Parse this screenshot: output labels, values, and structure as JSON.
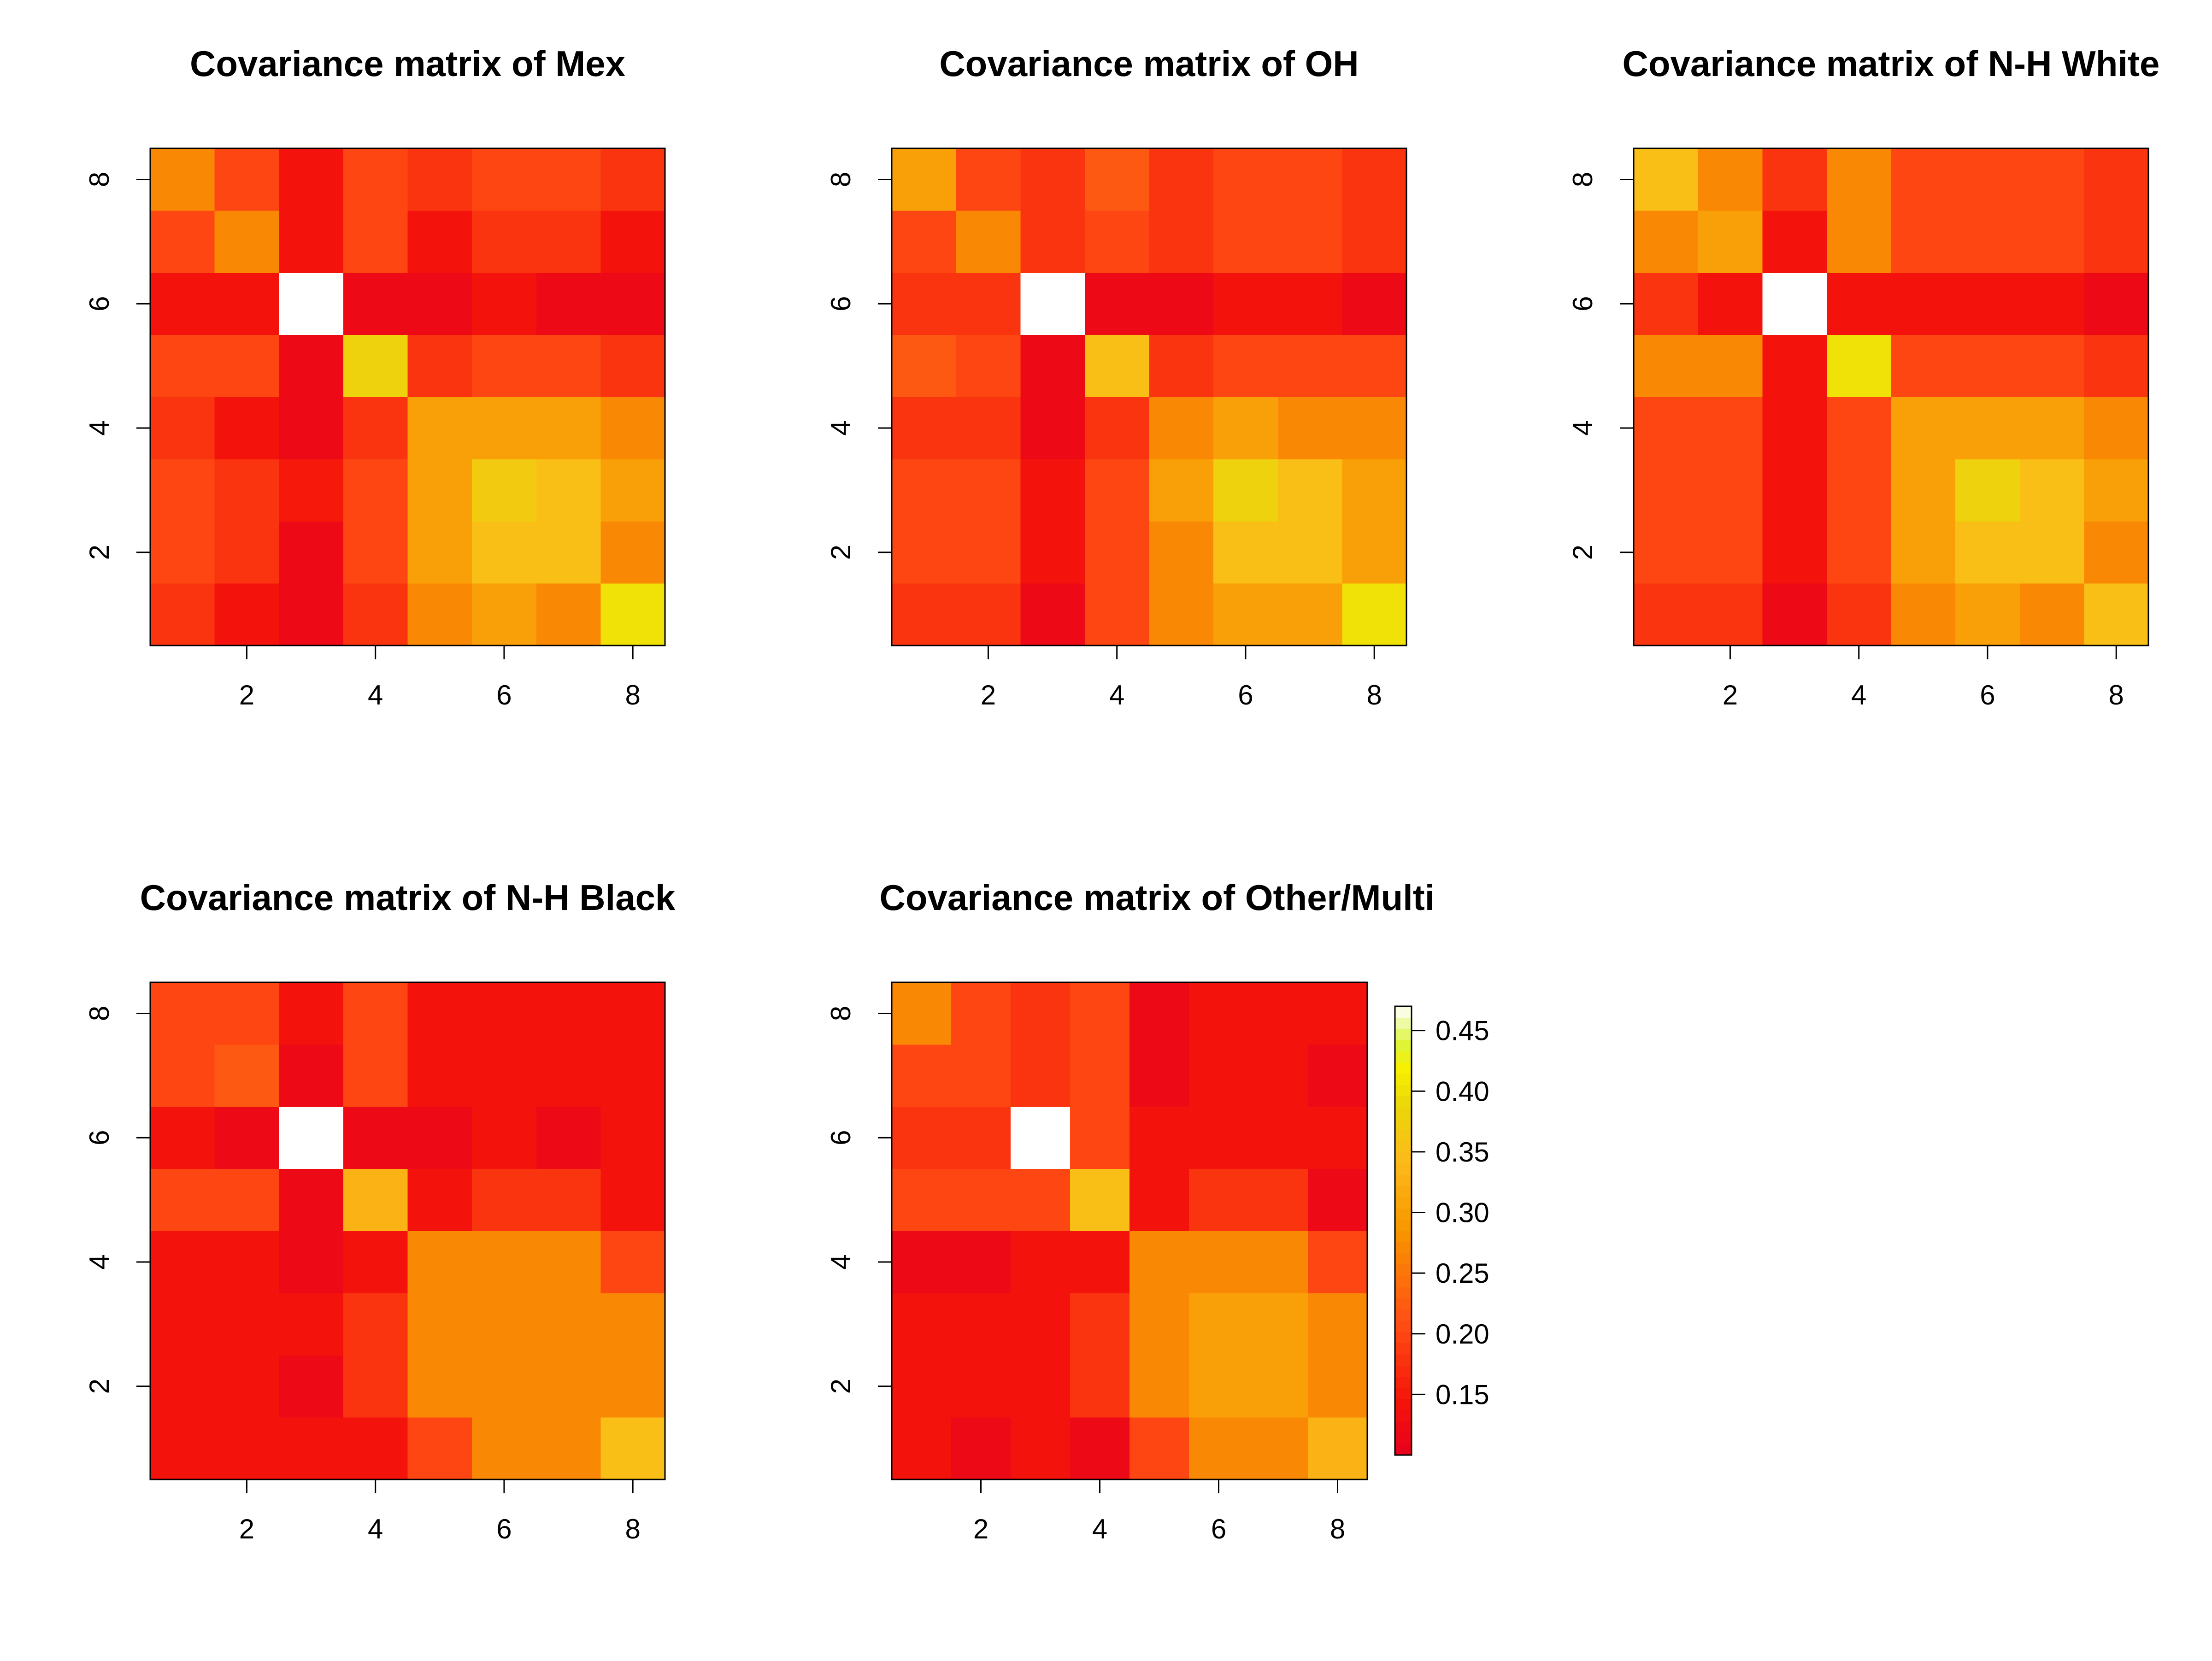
{
  "figure": {
    "colorbar": {
      "colormap": "heat",
      "ticks": [
        0.45,
        0.4,
        0.35,
        0.3,
        0.25,
        0.2,
        0.15
      ],
      "tick_labels": [
        "0.45",
        "0.40",
        "0.35",
        "0.30",
        "0.25",
        "0.20",
        "0.15"
      ],
      "range": [
        0.1,
        0.47
      ]
    },
    "axis_tick_labels": [
      "2",
      "4",
      "6",
      "8"
    ]
  },
  "chart_data": [
    {
      "type": "heatmap",
      "title": "Covariance matrix of Mex",
      "xlim": [
        0.5,
        8.5
      ],
      "ylim": [
        0.5,
        8.5
      ],
      "xticks": [
        2,
        4,
        6,
        8
      ],
      "yticks": [
        2,
        4,
        6,
        8
      ],
      "z_range": [
        0.1,
        0.47
      ],
      "rows": [
        [
          0.18,
          0.14,
          0.12,
          0.18,
          0.27,
          0.3,
          0.27,
          0.4
        ],
        [
          0.2,
          0.18,
          0.12,
          0.2,
          0.3,
          0.35,
          0.35,
          0.27
        ],
        [
          0.2,
          0.18,
          0.15,
          0.2,
          0.3,
          0.37,
          0.35,
          0.3
        ],
        [
          0.18,
          0.14,
          0.12,
          0.18,
          0.3,
          0.3,
          0.3,
          0.27
        ],
        [
          0.2,
          0.2,
          0.12,
          0.38,
          0.18,
          0.2,
          0.2,
          0.18
        ],
        [
          0.14,
          0.14,
          0.47,
          0.12,
          0.12,
          0.14,
          0.12,
          0.12
        ],
        [
          0.2,
          0.27,
          0.14,
          0.2,
          0.14,
          0.18,
          0.18,
          0.14
        ],
        [
          0.27,
          0.2,
          0.14,
          0.2,
          0.18,
          0.2,
          0.2,
          0.18
        ]
      ]
    },
    {
      "type": "heatmap",
      "title": "Covariance matrix of OH",
      "xlim": [
        0.5,
        8.5
      ],
      "ylim": [
        0.5,
        8.5
      ],
      "xticks": [
        2,
        4,
        6,
        8
      ],
      "yticks": [
        2,
        4,
        6,
        8
      ],
      "z_range": [
        0.1,
        0.47
      ],
      "rows": [
        [
          0.18,
          0.18,
          0.12,
          0.2,
          0.27,
          0.3,
          0.3,
          0.4
        ],
        [
          0.2,
          0.2,
          0.14,
          0.2,
          0.27,
          0.35,
          0.35,
          0.3
        ],
        [
          0.2,
          0.2,
          0.14,
          0.2,
          0.3,
          0.38,
          0.35,
          0.3
        ],
        [
          0.18,
          0.18,
          0.12,
          0.18,
          0.27,
          0.3,
          0.27,
          0.27
        ],
        [
          0.22,
          0.2,
          0.12,
          0.35,
          0.18,
          0.2,
          0.2,
          0.2
        ],
        [
          0.18,
          0.18,
          0.47,
          0.12,
          0.12,
          0.14,
          0.14,
          0.12
        ],
        [
          0.2,
          0.27,
          0.18,
          0.2,
          0.18,
          0.2,
          0.2,
          0.18
        ],
        [
          0.3,
          0.2,
          0.18,
          0.22,
          0.18,
          0.2,
          0.2,
          0.18
        ]
      ]
    },
    {
      "type": "heatmap",
      "title": "Covariance matrix of N-H White",
      "xlim": [
        0.5,
        8.5
      ],
      "ylim": [
        0.5,
        8.5
      ],
      "xticks": [
        2,
        4,
        6,
        8
      ],
      "yticks": [
        2,
        4,
        6,
        8
      ],
      "z_range": [
        0.1,
        0.47
      ],
      "rows": [
        [
          0.18,
          0.18,
          0.12,
          0.18,
          0.27,
          0.3,
          0.27,
          0.35
        ],
        [
          0.2,
          0.2,
          0.14,
          0.2,
          0.3,
          0.35,
          0.35,
          0.27
        ],
        [
          0.2,
          0.2,
          0.14,
          0.2,
          0.3,
          0.38,
          0.35,
          0.3
        ],
        [
          0.2,
          0.2,
          0.14,
          0.2,
          0.3,
          0.3,
          0.3,
          0.27
        ],
        [
          0.27,
          0.27,
          0.14,
          0.4,
          0.2,
          0.2,
          0.2,
          0.18
        ],
        [
          0.18,
          0.14,
          0.47,
          0.14,
          0.14,
          0.14,
          0.14,
          0.12
        ],
        [
          0.27,
          0.3,
          0.14,
          0.27,
          0.2,
          0.2,
          0.2,
          0.18
        ],
        [
          0.35,
          0.27,
          0.18,
          0.27,
          0.2,
          0.2,
          0.2,
          0.18
        ]
      ]
    },
    {
      "type": "heatmap",
      "title": "Covariance matrix of N-H Black",
      "xlim": [
        0.5,
        8.5
      ],
      "ylim": [
        0.5,
        8.5
      ],
      "xticks": [
        2,
        4,
        6,
        8
      ],
      "yticks": [
        2,
        4,
        6,
        8
      ],
      "z_range": [
        0.1,
        0.47
      ],
      "rows": [
        [
          0.14,
          0.14,
          0.14,
          0.14,
          0.2,
          0.27,
          0.27,
          0.35
        ],
        [
          0.14,
          0.14,
          0.12,
          0.18,
          0.27,
          0.27,
          0.27,
          0.27
        ],
        [
          0.14,
          0.14,
          0.14,
          0.18,
          0.27,
          0.27,
          0.27,
          0.27
        ],
        [
          0.14,
          0.14,
          0.12,
          0.14,
          0.27,
          0.27,
          0.27,
          0.2
        ],
        [
          0.2,
          0.2,
          0.12,
          0.33,
          0.14,
          0.18,
          0.18,
          0.14
        ],
        [
          0.14,
          0.12,
          0.47,
          0.12,
          0.12,
          0.14,
          0.12,
          0.14
        ],
        [
          0.2,
          0.22,
          0.12,
          0.2,
          0.14,
          0.14,
          0.14,
          0.14
        ],
        [
          0.2,
          0.2,
          0.14,
          0.2,
          0.14,
          0.14,
          0.14,
          0.14
        ]
      ]
    },
    {
      "type": "heatmap",
      "title": "Covariance matrix of Other/Multi",
      "xlim": [
        0.5,
        8.5
      ],
      "ylim": [
        0.5,
        8.5
      ],
      "xticks": [
        2,
        4,
        6,
        8
      ],
      "yticks": [
        2,
        4,
        6,
        8
      ],
      "z_range": [
        0.1,
        0.47
      ],
      "rows": [
        [
          0.14,
          0.12,
          0.14,
          0.12,
          0.2,
          0.27,
          0.27,
          0.33
        ],
        [
          0.14,
          0.14,
          0.14,
          0.18,
          0.27,
          0.3,
          0.3,
          0.27
        ],
        [
          0.14,
          0.14,
          0.14,
          0.18,
          0.27,
          0.3,
          0.3,
          0.27
        ],
        [
          0.12,
          0.12,
          0.14,
          0.14,
          0.27,
          0.27,
          0.27,
          0.2
        ],
        [
          0.2,
          0.2,
          0.2,
          0.35,
          0.14,
          0.18,
          0.18,
          0.12
        ],
        [
          0.18,
          0.18,
          0.47,
          0.2,
          0.14,
          0.14,
          0.14,
          0.14
        ],
        [
          0.2,
          0.2,
          0.18,
          0.2,
          0.12,
          0.14,
          0.14,
          0.12
        ],
        [
          0.27,
          0.2,
          0.18,
          0.2,
          0.12,
          0.14,
          0.14,
          0.14
        ]
      ]
    }
  ]
}
